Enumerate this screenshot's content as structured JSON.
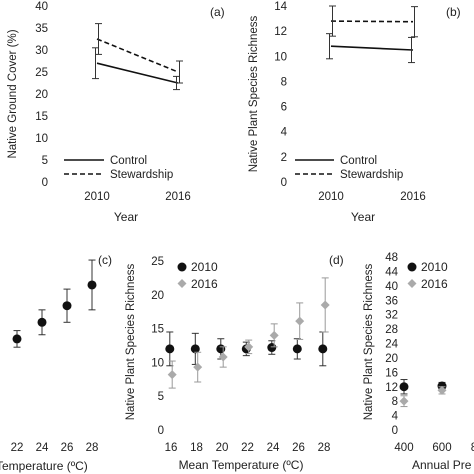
{
  "chart_data": [
    {
      "panel_label": "(a)",
      "type": "line",
      "ylabel": "Native Ground Cover (%)",
      "xlabel": "Year",
      "x": [
        "2010",
        "2016"
      ],
      "ylim": [
        0,
        40
      ],
      "yticks": [
        "0",
        "5",
        "10",
        "15",
        "20",
        "25",
        "30",
        "35",
        "40"
      ],
      "series": [
        {
          "name": "Control",
          "style": "solid",
          "values": [
            27,
            22.5
          ],
          "error": [
            3.5,
            1.5
          ]
        },
        {
          "name": "Stewardship",
          "style": "dashed",
          "values": [
            32.5,
            25
          ],
          "error": [
            3.5,
            2.5
          ]
        }
      ],
      "legend": "bottom-left",
      "grid": false
    },
    {
      "panel_label": "(b)",
      "type": "line",
      "ylabel": "Native Plant Species Richness",
      "xlabel": "Year",
      "x": [
        "2010",
        "2016"
      ],
      "ylim": [
        0,
        14
      ],
      "yticks": [
        "0",
        "2",
        "4",
        "6",
        "8",
        "10",
        "12",
        "14"
      ],
      "series": [
        {
          "name": "Control",
          "style": "solid",
          "values": [
            10.8,
            10.5
          ],
          "error": [
            1,
            1
          ]
        },
        {
          "name": "Stewardship",
          "style": "dashed",
          "values": [
            12.8,
            12.75
          ],
          "error": [
            1.2,
            1.2
          ]
        }
      ],
      "legend": "bottom-left",
      "grid": false
    },
    {
      "panel_label": "(c)",
      "type": "scatter",
      "xlabel": "Mean Temperature (ºC)",
      "xlabel_visible": "Temperature (ºC)",
      "xticks": [
        "22",
        "24",
        "26",
        "28"
      ],
      "series": [
        {
          "name": "",
          "x": [
            22,
            24,
            26,
            28
          ],
          "values": [
            34,
            38,
            42,
            47
          ],
          "error": [
            2,
            3,
            4,
            6
          ]
        }
      ],
      "grid": false
    },
    {
      "panel_label": "(d)",
      "type": "scatter",
      "ylabel": "Native Plant Species Richness",
      "xlabel": "Mean Temperature (ºC)",
      "xlim": [
        16,
        28
      ],
      "ylim": [
        0,
        25
      ],
      "xticks": [
        "16",
        "18",
        "20",
        "22",
        "24",
        "26",
        "28"
      ],
      "yticks": [
        "0",
        "5",
        "10",
        "15",
        "20",
        "25"
      ],
      "series": [
        {
          "name": "2010",
          "color": "#111111",
          "x": [
            16,
            18,
            20,
            22,
            24,
            26,
            28
          ],
          "values": [
            12,
            12,
            12,
            12,
            12.2,
            12,
            12
          ],
          "error": [
            2.5,
            2.3,
            1.5,
            1,
            1,
            1.5,
            2.5
          ]
        },
        {
          "name": "2016",
          "color": "#aaaaaa",
          "x": [
            16,
            18,
            20,
            22,
            24,
            26,
            28
          ],
          "values": [
            8.2,
            9.3,
            10.8,
            12.3,
            14,
            16.1,
            18.5
          ],
          "error": [
            2,
            2.2,
            1.5,
            1,
            1.7,
            2.7,
            4
          ]
        }
      ],
      "legend": "top-left",
      "grid": false
    },
    {
      "panel_label": "",
      "type": "scatter",
      "ylabel": "Native Plant Species Richness",
      "xlabel": "Annual Precipitation",
      "xlabel_visible": "Annual Pre",
      "ylim": [
        0,
        48
      ],
      "yticks": [
        "0",
        "4",
        "8",
        "12",
        "16",
        "20",
        "24",
        "28",
        "32",
        "36",
        "40",
        "44",
        "48"
      ],
      "xticks": [
        "400",
        "600",
        "8"
      ],
      "series": [
        {
          "name": "2010",
          "color": "#111111",
          "x": [
            400,
            600
          ],
          "values": [
            12,
            12.2
          ],
          "error": [
            2,
            1
          ]
        },
        {
          "name": "2016",
          "color": "#aaaaaa",
          "x": [
            400,
            600
          ],
          "values": [
            8,
            11
          ],
          "error": [
            1.5,
            1
          ]
        }
      ],
      "legend": "top-left",
      "grid": false
    }
  ]
}
